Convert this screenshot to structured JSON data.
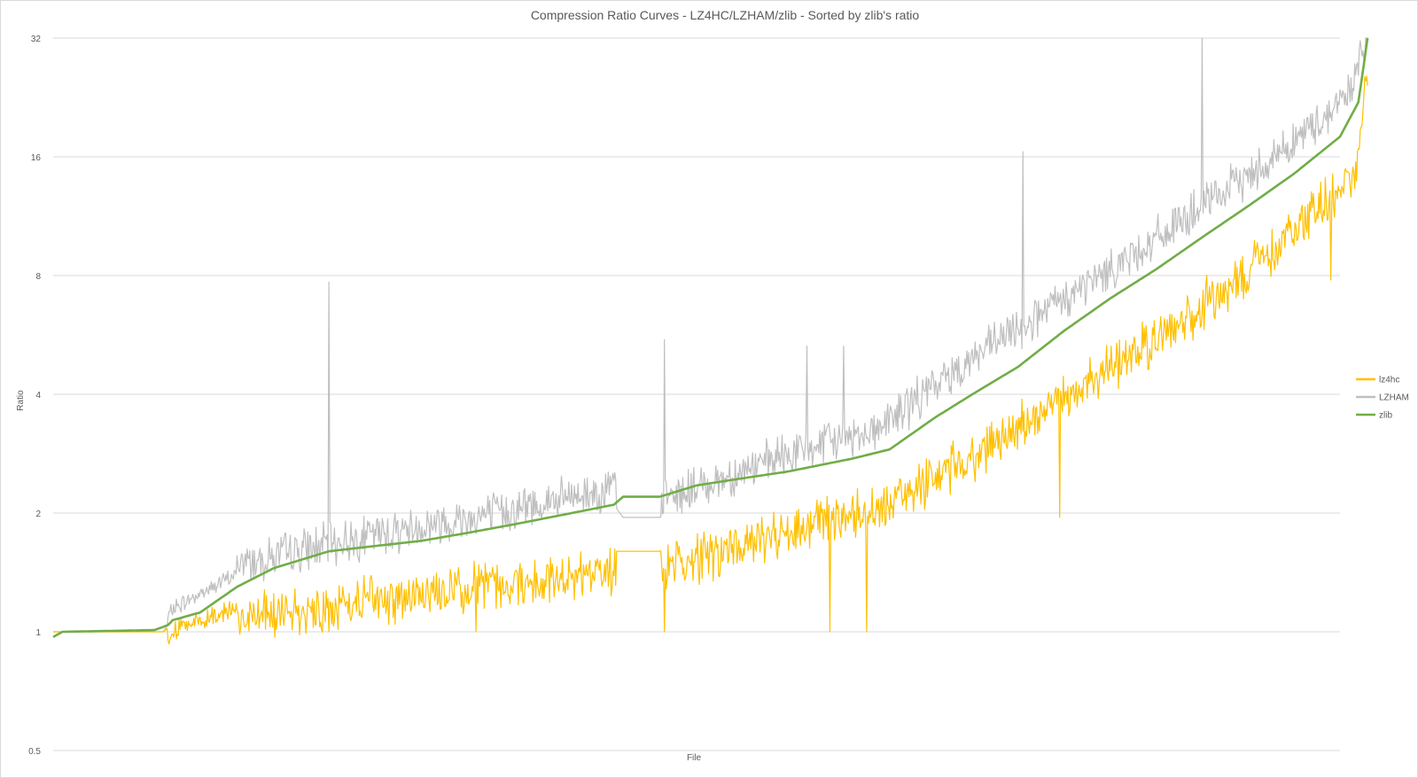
{
  "chart_data": {
    "type": "line",
    "title": "Compression Ratio Curves - LZ4HC/LZHAM/zlib - Sorted by zlib's ratio",
    "xlabel": "File",
    "ylabel": "Ratio",
    "y_scale": "log2",
    "ylim": [
      0.5,
      32
    ],
    "y_ticks": [
      "0.5",
      "1",
      "2",
      "4",
      "8",
      "16",
      "32"
    ],
    "x_tick_labels": "none",
    "x_count": 1400,
    "grid": "horizontal",
    "legend_position": "right",
    "series": [
      {
        "name": "lz4hc",
        "color": "#FFC000",
        "anchors": [
          [
            0,
            1.0
          ],
          [
            120,
            1.0
          ],
          [
            130,
            1.05
          ],
          [
            200,
            1.2
          ],
          [
            350,
            1.35
          ],
          [
            500,
            1.48
          ],
          [
            610,
            1.6
          ],
          [
            660,
            1.6
          ],
          [
            800,
            2.0
          ],
          [
            900,
            2.3
          ],
          [
            1000,
            3.1
          ],
          [
            1100,
            4.4
          ],
          [
            1200,
            6.2
          ],
          [
            1300,
            9.0
          ],
          [
            1380,
            13.5
          ],
          [
            1415,
            16
          ],
          [
            1430,
            28
          ]
        ],
        "spike_low_examples": [
          [
            300,
            1.0
          ],
          [
            460,
            1.0
          ],
          [
            665,
            1.0
          ],
          [
            845,
            1.0
          ],
          [
            885,
            1.0
          ],
          [
            1095,
            1.95
          ],
          [
            1390,
            7.8
          ]
        ]
      },
      {
        "name": "LZHAM",
        "color": "#BFBFBF",
        "anchors": [
          [
            0,
            1.0
          ],
          [
            120,
            1.0
          ],
          [
            130,
            1.1
          ],
          [
            200,
            1.35
          ],
          [
            350,
            1.6
          ],
          [
            500,
            1.85
          ],
          [
            610,
            2.1
          ],
          [
            620,
            1.95
          ],
          [
            660,
            1.95
          ],
          [
            800,
            2.55
          ],
          [
            900,
            3.0
          ],
          [
            1000,
            4.5
          ],
          [
            1100,
            6.3
          ],
          [
            1200,
            9.0
          ],
          [
            1300,
            13.0
          ],
          [
            1380,
            18.0
          ],
          [
            1415,
            22.0
          ],
          [
            1430,
            32
          ]
        ],
        "spike_high_examples": [
          [
            300,
            7.7
          ],
          [
            665,
            5.5
          ],
          [
            820,
            5.3
          ],
          [
            860,
            5.3
          ],
          [
            1055,
            16.5
          ],
          [
            1250,
            32
          ]
        ]
      },
      {
        "name": "zlib",
        "color": "#70AD47",
        "points": [
          [
            0,
            0.97
          ],
          [
            10,
            1.0
          ],
          [
            110,
            1.01
          ],
          [
            125,
            1.04
          ],
          [
            130,
            1.07
          ],
          [
            160,
            1.12
          ],
          [
            200,
            1.3
          ],
          [
            240,
            1.45
          ],
          [
            300,
            1.6
          ],
          [
            350,
            1.65
          ],
          [
            400,
            1.7
          ],
          [
            450,
            1.78
          ],
          [
            500,
            1.87
          ],
          [
            550,
            1.97
          ],
          [
            610,
            2.1
          ],
          [
            620,
            2.2
          ],
          [
            660,
            2.2
          ],
          [
            700,
            2.35
          ],
          [
            750,
            2.45
          ],
          [
            800,
            2.55
          ],
          [
            870,
            2.75
          ],
          [
            910,
            2.9
          ],
          [
            960,
            3.5
          ],
          [
            1000,
            4.0
          ],
          [
            1050,
            4.7
          ],
          [
            1100,
            5.8
          ],
          [
            1150,
            7.0
          ],
          [
            1200,
            8.3
          ],
          [
            1250,
            10.0
          ],
          [
            1300,
            12.0
          ],
          [
            1350,
            14.5
          ],
          [
            1400,
            18.0
          ],
          [
            1420,
            22.0
          ],
          [
            1430,
            32.0
          ]
        ]
      }
    ]
  }
}
